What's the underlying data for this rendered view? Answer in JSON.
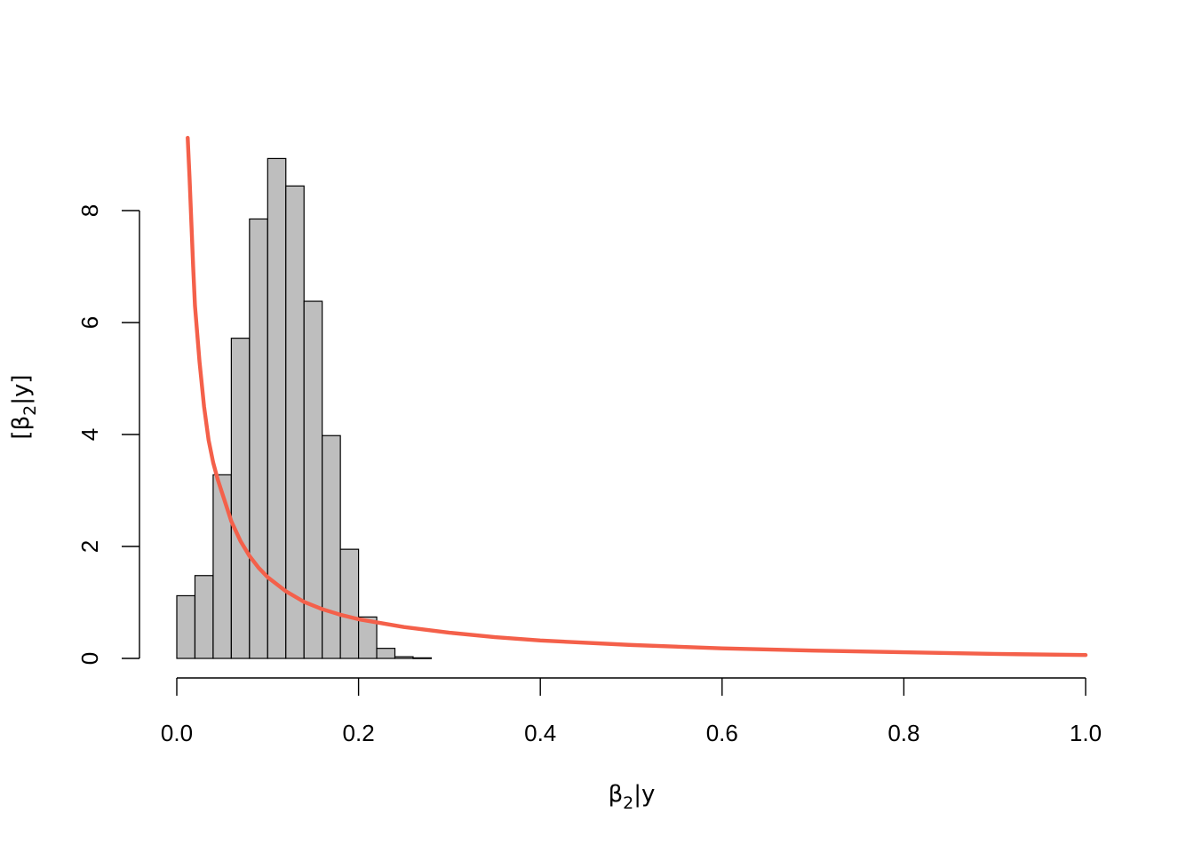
{
  "chart_data": {
    "type": "bar",
    "subtype": "histogram with density curve",
    "title": "",
    "xlabel": {
      "prefix": "β",
      "sub": "2",
      "suffix": "|y"
    },
    "ylabel": {
      "prefix": "[β",
      "sub": "2",
      "suffix": "|y]"
    },
    "xlim": [
      0,
      1
    ],
    "ylim": [
      0,
      9.3
    ],
    "x_ticks": [
      {
        "value": 0.0,
        "label": "0.0"
      },
      {
        "value": 0.2,
        "label": "0.2"
      },
      {
        "value": 0.4,
        "label": "0.4"
      },
      {
        "value": 0.6,
        "label": "0.6"
      },
      {
        "value": 0.8,
        "label": "0.8"
      },
      {
        "value": 1.0,
        "label": "1.0"
      }
    ],
    "y_ticks": [
      {
        "value": 0,
        "label": "0"
      },
      {
        "value": 2,
        "label": "2"
      },
      {
        "value": 4,
        "label": "4"
      },
      {
        "value": 6,
        "label": "6"
      },
      {
        "value": 8,
        "label": "8"
      }
    ],
    "grid": false,
    "legend": "none",
    "histogram": {
      "bin_width": 0.02,
      "bin_start": 0.0,
      "values": [
        1.12,
        1.48,
        3.28,
        5.72,
        7.85,
        8.93,
        8.44,
        6.38,
        3.98,
        1.95,
        0.74,
        0.18,
        0.03,
        0.01
      ],
      "color": "#bebebe"
    },
    "density_curve": {
      "color": "#f4604a",
      "points": [
        [
          0.012,
          9.3
        ],
        [
          0.014,
          8.6
        ],
        [
          0.016,
          7.8
        ],
        [
          0.018,
          7.0
        ],
        [
          0.02,
          6.3
        ],
        [
          0.025,
          5.3
        ],
        [
          0.03,
          4.5
        ],
        [
          0.035,
          3.9
        ],
        [
          0.04,
          3.5
        ],
        [
          0.045,
          3.2
        ],
        [
          0.05,
          2.95
        ],
        [
          0.06,
          2.45
        ],
        [
          0.07,
          2.1
        ],
        [
          0.08,
          1.83
        ],
        [
          0.09,
          1.62
        ],
        [
          0.1,
          1.45
        ],
        [
          0.12,
          1.2
        ],
        [
          0.14,
          1.01
        ],
        [
          0.16,
          0.88
        ],
        [
          0.18,
          0.78
        ],
        [
          0.2,
          0.7
        ],
        [
          0.25,
          0.56
        ],
        [
          0.3,
          0.46
        ],
        [
          0.35,
          0.38
        ],
        [
          0.4,
          0.32
        ],
        [
          0.5,
          0.24
        ],
        [
          0.6,
          0.18
        ],
        [
          0.7,
          0.14
        ],
        [
          0.8,
          0.11
        ],
        [
          0.9,
          0.08
        ],
        [
          1.0,
          0.06
        ]
      ]
    }
  }
}
